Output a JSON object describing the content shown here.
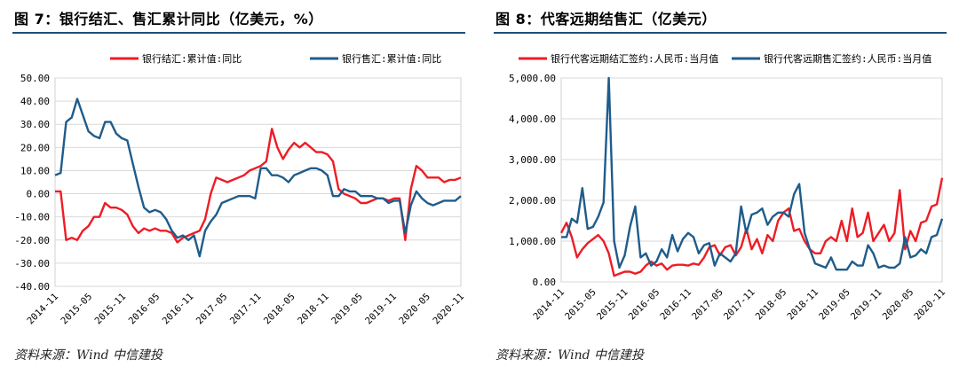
{
  "left": {
    "title": "图 7：银行结汇、售汇累计同比（亿美元，%）",
    "source": "资料来源：Wind 中信建投"
  },
  "right": {
    "title": "图 8：代客远期结售汇（亿美元）",
    "source": "资料来源：Wind 中信建投"
  },
  "colors": {
    "red": "#ee1c25",
    "blue": "#1f5c8b",
    "rule": "#1f4e79"
  },
  "chart_data": [
    {
      "type": "line",
      "title": "",
      "xlabel": "",
      "ylabel": "",
      "ylim": [
        -40,
        50
      ],
      "yticks": [
        "50.00",
        "40.00",
        "30.00",
        "20.00",
        "10.00",
        "0.00",
        "-10.00",
        "-20.00",
        "-30.00",
        "-40.00"
      ],
      "ytick_values": [
        50,
        40,
        30,
        20,
        10,
        0,
        -10,
        -20,
        -30,
        -40
      ],
      "xticks": [
        "2014-11",
        "2015-05",
        "2015-11",
        "2016-05",
        "2016-11",
        "2017-05",
        "2017-11",
        "2018-05",
        "2018-11",
        "2019-05",
        "2019-11",
        "2020-05",
        "2020-11"
      ],
      "grid": true,
      "legend": "top",
      "series": [
        {
          "name": "银行结汇:累计值:同比",
          "color": "red",
          "values": [
            1,
            1,
            -20,
            -19,
            -20,
            -16,
            -14,
            -10,
            -10,
            -4,
            -6,
            -6,
            -7,
            -9,
            -14,
            -17,
            -15,
            -16,
            -15,
            -16,
            -16,
            -17,
            -21,
            -19,
            -18,
            -17,
            -16,
            -11,
            0,
            7,
            6,
            5,
            6,
            7,
            8,
            10,
            11,
            12,
            14,
            28,
            20,
            15,
            19,
            22,
            20,
            22,
            20,
            18,
            18,
            17,
            14,
            2,
            0,
            -1,
            -2,
            -4,
            -4,
            -3,
            -2,
            -2,
            -3,
            -2,
            -2,
            -20,
            2,
            12,
            10,
            7,
            7,
            7,
            5,
            6,
            6,
            7
          ]
        },
        {
          "name": "银行售汇:累计值:同比",
          "color": "blue",
          "values": [
            8,
            9,
            31,
            33,
            41,
            34,
            27,
            25,
            24,
            31,
            31,
            26,
            24,
            23,
            13,
            3,
            -6,
            -8,
            -7,
            -8,
            -11,
            -16,
            -19,
            -18,
            -20,
            -18,
            -27,
            -16,
            -12,
            -9,
            -4,
            -3,
            -2,
            -1,
            -1,
            -1,
            -2,
            11,
            11,
            8,
            8,
            7,
            5,
            8,
            9,
            10,
            11,
            11,
            10,
            8,
            -1,
            -1,
            2,
            1,
            1,
            -1,
            -1,
            -1,
            -2,
            -2,
            -4,
            -3,
            -3,
            -17,
            -5,
            1,
            -2,
            -4,
            -5,
            -4,
            -3,
            -3,
            -3,
            -1
          ]
        }
      ]
    },
    {
      "type": "line",
      "title": "",
      "xlabel": "",
      "ylabel": "",
      "ylim": [
        0,
        5000
      ],
      "yticks": [
        "5,000.00",
        "4,000.00",
        "3,000.00",
        "2,000.00",
        "1,000.00",
        "0.00"
      ],
      "ytick_values": [
        5000,
        4000,
        3000,
        2000,
        1000,
        0
      ],
      "xticks": [
        "2014-11",
        "2015-05",
        "2015-11",
        "2016-05",
        "2016-11",
        "2017-05",
        "2017-11",
        "2018-05",
        "2018-11",
        "2019-05",
        "2019-11",
        "2020-05",
        "2020-11"
      ],
      "grid": true,
      "legend": "top",
      "series": [
        {
          "name": "银行代客远期结汇签约:人民币:当月值",
          "color": "red",
          "values": [
            1200,
            1450,
            1100,
            600,
            800,
            950,
            1050,
            1150,
            1000,
            700,
            150,
            200,
            250,
            250,
            200,
            250,
            400,
            500,
            400,
            450,
            300,
            400,
            420,
            420,
            400,
            450,
            420,
            600,
            850,
            900,
            650,
            850,
            900,
            650,
            850,
            1300,
            800,
            1050,
            700,
            1150,
            1000,
            1500,
            1700,
            1800,
            1250,
            1300,
            1000,
            800,
            700,
            700,
            1000,
            1100,
            1000,
            1500,
            1000,
            1800,
            1100,
            1200,
            1700,
            1000,
            1200,
            1400,
            1000,
            1200,
            2250,
            800,
            1250,
            1000,
            1450,
            1500,
            1850,
            1900,
            2550
          ]
        },
        {
          "name": "银行代客远期售汇签约:人民币:当月值",
          "color": "blue",
          "values": [
            1100,
            1100,
            1550,
            1450,
            2300,
            1300,
            1350,
            1600,
            1950,
            5000,
            1000,
            350,
            650,
            1350,
            1850,
            600,
            700,
            400,
            500,
            800,
            600,
            1150,
            750,
            1050,
            1200,
            1100,
            700,
            900,
            950,
            400,
            700,
            600,
            500,
            700,
            1850,
            1200,
            1650,
            1700,
            1800,
            1400,
            1600,
            1700,
            1700,
            1600,
            2150,
            2400,
            1200,
            800,
            450,
            400,
            350,
            600,
            300,
            300,
            300,
            500,
            400,
            400,
            900,
            700,
            350,
            400,
            350,
            350,
            450,
            1100,
            600,
            650,
            800,
            700,
            1100,
            1150,
            1550
          ]
        }
      ]
    }
  ]
}
